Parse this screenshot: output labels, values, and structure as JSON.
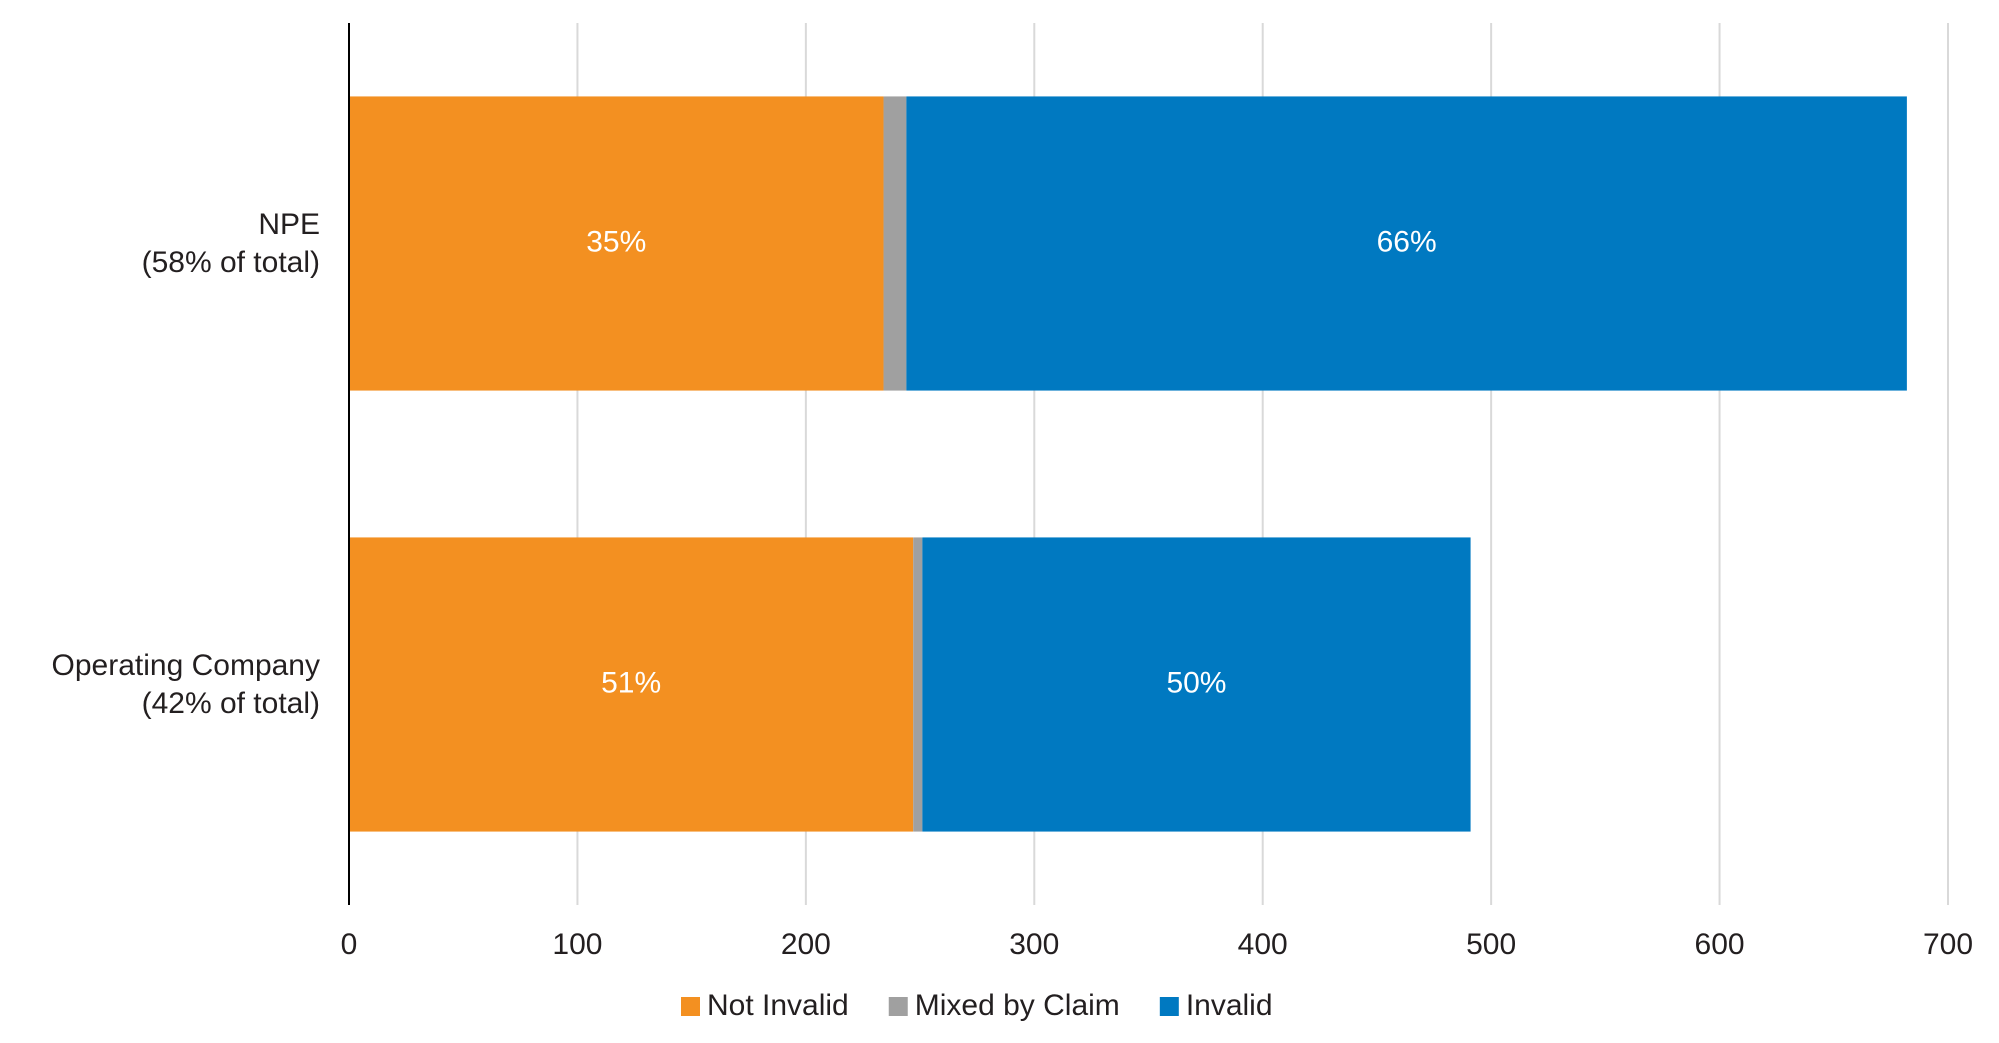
{
  "chart_data": {
    "type": "stacked-barh",
    "categories": [
      "NPE\n(58% of total)",
      "Operating Company\n(42% of total)"
    ],
    "series": [
      {
        "name": "Not Invalid",
        "color": "#f39021",
        "values": [
          234,
          247
        ],
        "labels": [
          "35%",
          "51%"
        ]
      },
      {
        "name": "Mixed by Claim",
        "color": "#a0a0a0",
        "values": [
          10,
          4
        ]
      },
      {
        "name": "Invalid",
        "color": "#0079c1",
        "values": [
          438,
          240
        ],
        "labels": [
          "66%",
          "50%"
        ]
      }
    ],
    "xlim": [
      0,
      700
    ],
    "xticks": [
      0,
      100,
      200,
      300,
      400,
      500,
      600,
      700
    ],
    "grid": true,
    "legend": "bottom"
  }
}
